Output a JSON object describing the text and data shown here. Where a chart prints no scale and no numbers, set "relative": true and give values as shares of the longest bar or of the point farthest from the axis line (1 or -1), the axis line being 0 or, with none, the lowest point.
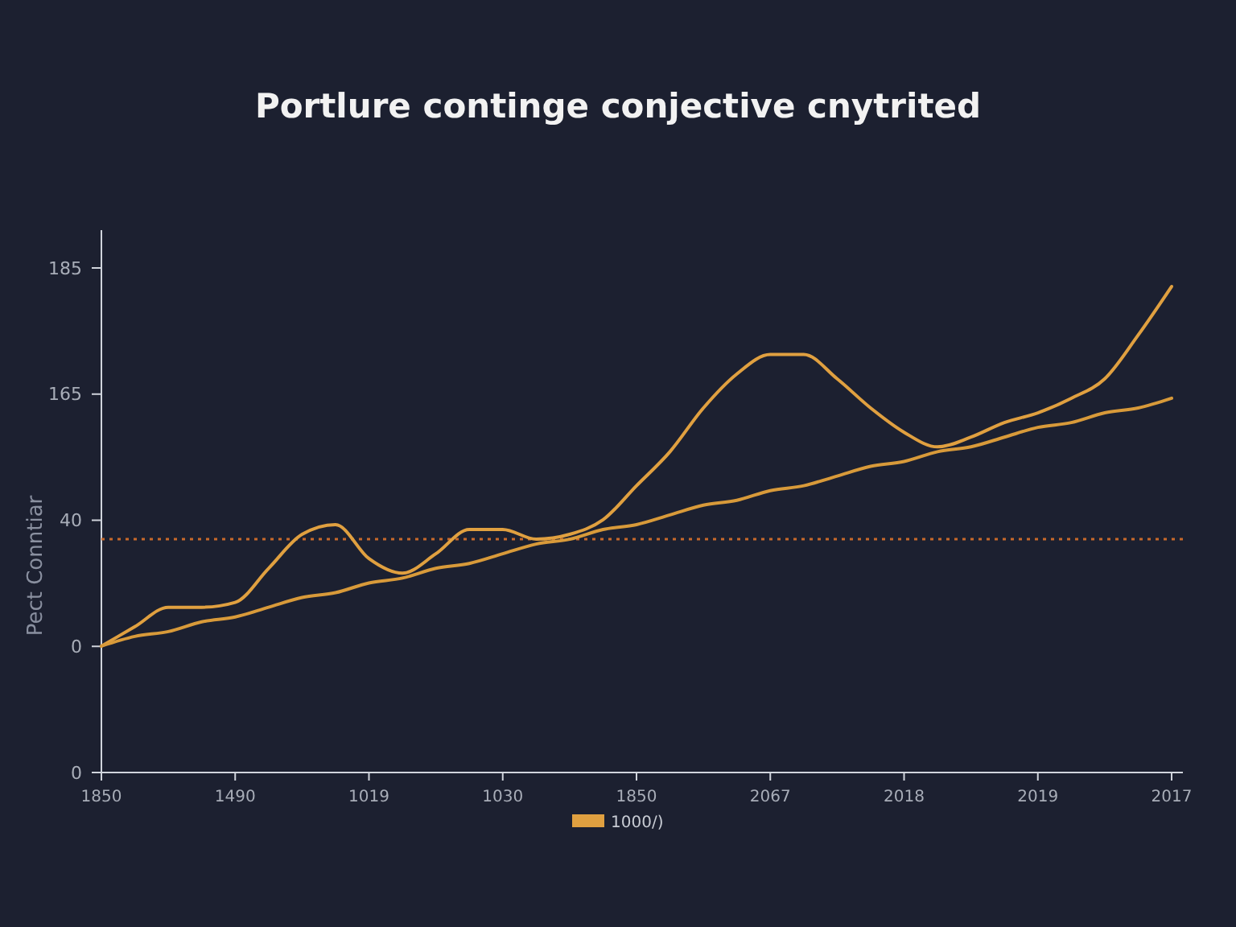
{
  "chart_data": {
    "type": "line",
    "title": "Portlure continge conjective cnytrited",
    "ylabel": "Pect Conntiar",
    "relative": true,
    "categories": [
      "1850",
      null,
      null,
      null,
      "1490",
      null,
      null,
      null,
      "1019",
      null,
      null,
      null,
      "1030",
      null,
      null,
      null,
      "1850",
      null,
      null,
      null,
      "2067",
      null,
      null,
      null,
      "2018",
      null,
      null,
      null,
      "2019",
      null,
      null,
      null,
      "2017"
    ],
    "annotations": [
      "0",
      "0",
      "40",
      "165",
      "185"
    ],
    "series": [
      {
        "name": "1000/)",
        "color": "#e0a040",
        "values": [
          0.26,
          0.3,
          0.34,
          0.34,
          0.35,
          0.42,
          0.49,
          0.51,
          0.44,
          0.41,
          0.45,
          0.5,
          0.5,
          0.48,
          0.49,
          0.52,
          0.59,
          0.66,
          0.75,
          0.82,
          0.86,
          0.86,
          0.81,
          0.75,
          0.7,
          0.67,
          0.69,
          0.72,
          0.74,
          0.77,
          0.81,
          0.9,
          1
        ]
      },
      {
        "color": "#d89a3a",
        "values": [
          0.26,
          0.28,
          0.29,
          0.31,
          0.32,
          0.34,
          0.36,
          0.37,
          0.39,
          0.4,
          0.42,
          0.43,
          0.45,
          0.47,
          0.48,
          0.5,
          0.51,
          0.53,
          0.55,
          0.56,
          0.58,
          0.59,
          0.61,
          0.63,
          0.64,
          0.66,
          0.67,
          0.69,
          0.71,
          0.72,
          0.74,
          0.75,
          0.77
        ]
      }
    ],
    "ref_lines": [
      {
        "axis": "y",
        "value": 0.48,
        "color": "#c8692a",
        "line_style": "dotted"
      }
    ],
    "legend": "bottom",
    "marker": "none",
    "line_style": "solid"
  }
}
